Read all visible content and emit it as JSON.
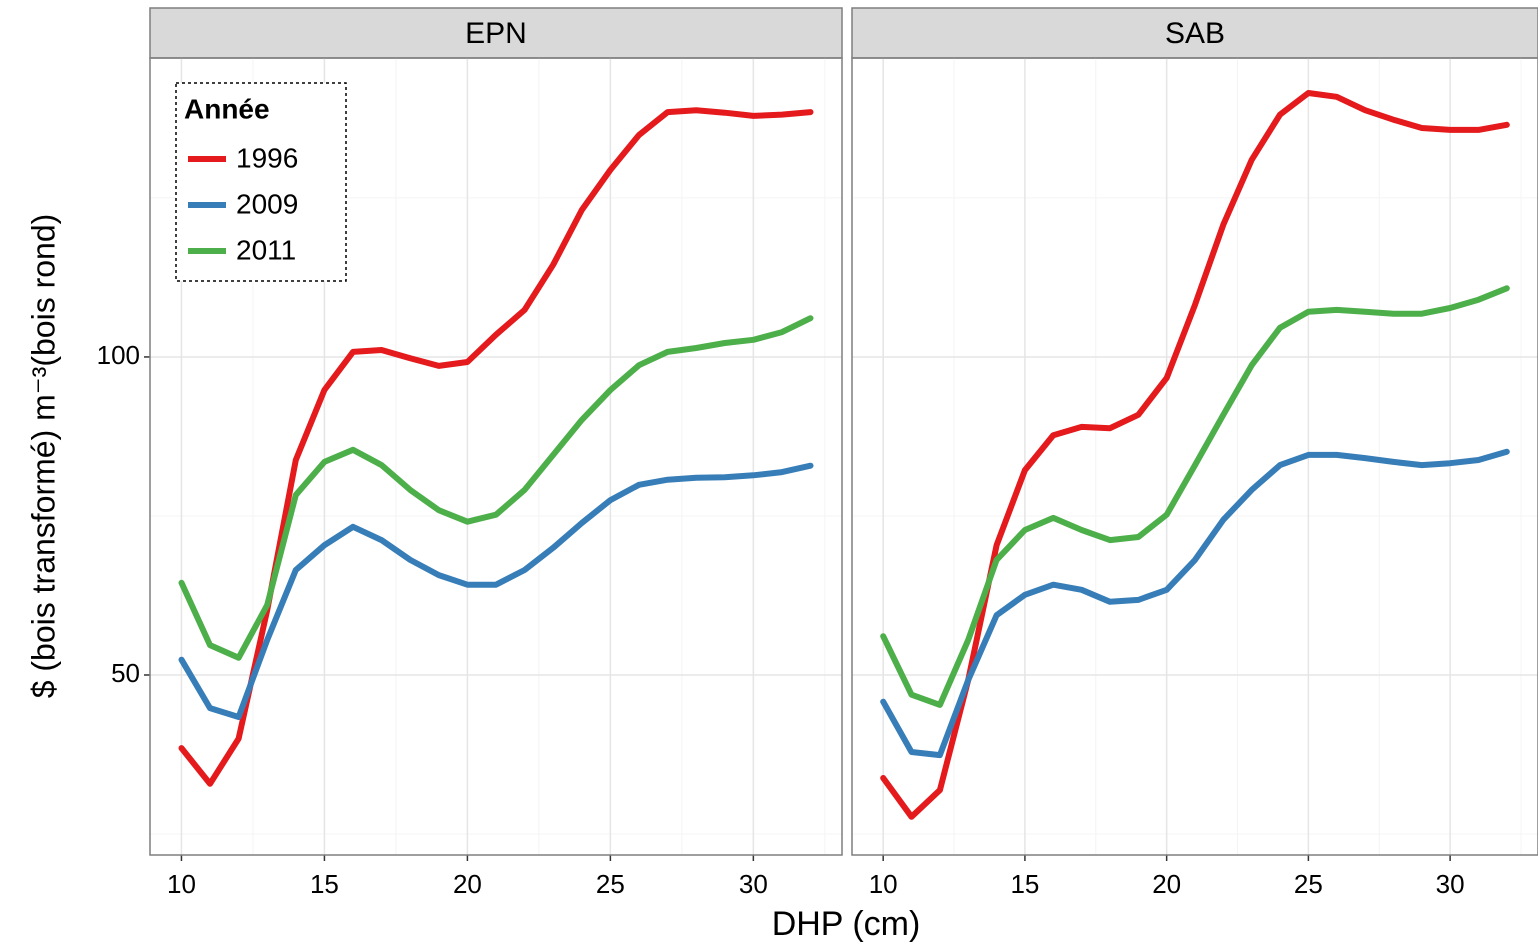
{
  "chart_data": [
    {
      "type": "line",
      "title": "EPN",
      "x_label": "DHP (cm)",
      "y_label": "$ (bois transformé) m⁻³(bois rond)",
      "legend_title": "Année",
      "legend": "top-left",
      "x": [
        10,
        11,
        12,
        13,
        14,
        15,
        16,
        17,
        18,
        19,
        20,
        21,
        22,
        23,
        24,
        25,
        26,
        27,
        28,
        29,
        30,
        31,
        32
      ],
      "series": [
        {
          "name": "1996",
          "color": "#e41a1c",
          "values": [
            38.5,
            32.9,
            40.0,
            60.2,
            83.8,
            94.8,
            100.8,
            101.1,
            99.8,
            98.6,
            99.2,
            103.5,
            107.4,
            114.5,
            123.1,
            129.4,
            134.9,
            138.5,
            138.8,
            138.4,
            137.9,
            138.1,
            138.5
          ]
        },
        {
          "name": "2009",
          "color": "#377eb8",
          "values": [
            52.4,
            44.8,
            43.4,
            55.5,
            66.5,
            70.4,
            73.3,
            71.2,
            68.1,
            65.7,
            64.2,
            64.2,
            66.5,
            70.0,
            73.9,
            77.5,
            79.9,
            80.7,
            81.0,
            81.1,
            81.4,
            81.9,
            82.9
          ]
        },
        {
          "name": "2011",
          "color": "#4daf4a",
          "values": [
            64.5,
            54.7,
            52.7,
            61.0,
            78.3,
            83.5,
            85.4,
            83.0,
            79.1,
            75.9,
            74.1,
            75.2,
            79.1,
            84.6,
            90.1,
            94.8,
            98.7,
            100.8,
            101.4,
            102.2,
            102.7,
            103.9,
            106.1
          ]
        }
      ],
      "xlim": [
        8.9,
        33.1
      ],
      "ylim": [
        21.7,
        147
      ],
      "xticks": [
        10,
        15,
        20,
        25,
        30
      ],
      "yticks": [
        50,
        100
      ],
      "grid": true
    },
    {
      "type": "line",
      "title": "SAB",
      "x": [
        10,
        11,
        12,
        13,
        14,
        15,
        16,
        17,
        18,
        19,
        20,
        21,
        22,
        23,
        24,
        25,
        26,
        27,
        28,
        29,
        30,
        31,
        32
      ],
      "series": [
        {
          "color": "#e41a1c",
          "values": [
            33.8,
            27.7,
            31.9,
            49.2,
            70.4,
            82.2,
            87.7,
            89.0,
            88.8,
            90.9,
            96.7,
            108.2,
            120.8,
            131.0,
            138.1,
            141.5,
            140.9,
            138.8,
            137.3,
            136.0,
            135.7,
            135.7,
            136.5
          ]
        },
        {
          "color": "#377eb8",
          "values": [
            45.8,
            37.9,
            37.4,
            49.2,
            59.4,
            62.6,
            64.2,
            63.4,
            61.5,
            61.8,
            63.4,
            68.1,
            74.4,
            79.1,
            83.0,
            84.6,
            84.6,
            84.1,
            83.5,
            83.0,
            83.3,
            83.8,
            85.1
          ]
        },
        {
          "color": "#4daf4a",
          "values": [
            56.1,
            46.9,
            45.3,
            55.5,
            68.1,
            72.8,
            74.7,
            72.8,
            71.2,
            71.7,
            75.2,
            83.0,
            90.9,
            98.7,
            104.6,
            107.1,
            107.4,
            107.1,
            106.8,
            106.8,
            107.7,
            109.0,
            110.8
          ]
        }
      ],
      "xlim": [
        8.9,
        33.1
      ],
      "ylim": [
        21.7,
        147
      ],
      "xticks": [
        10,
        15,
        20,
        25,
        30
      ],
      "yticks": [
        50,
        100
      ],
      "grid": true
    }
  ]
}
